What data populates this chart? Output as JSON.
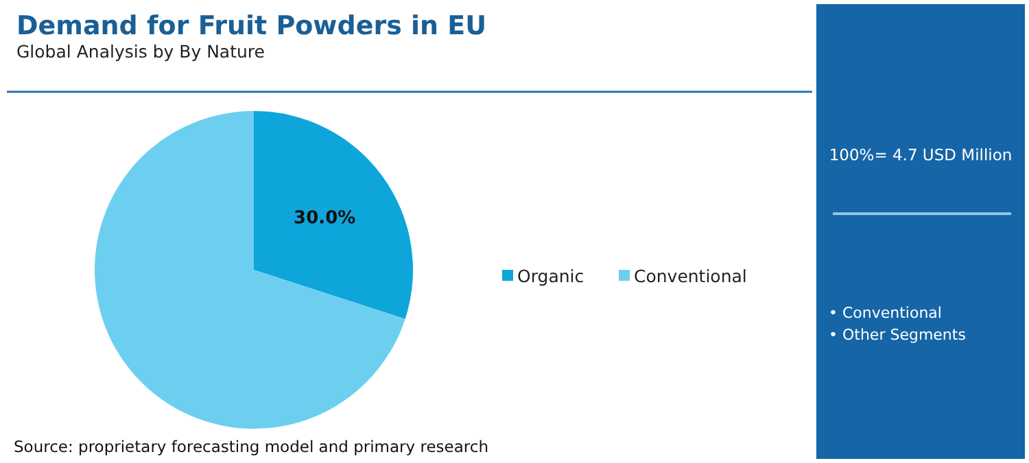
{
  "chart_data": {
    "type": "pie",
    "title": "Demand for Fruit Powders in EU",
    "subtitle": "Global Analysis by By Nature",
    "categories": [
      "Organic",
      "Conventional"
    ],
    "values": [
      30,
      70
    ],
    "colors": [
      "#0ea5db",
      "#6dcff0"
    ],
    "value_labels": [
      "30.0%",
      null
    ],
    "legend": "right",
    "annotations": [
      "100%= 4.7 USD Million",
      "• Conventional",
      "• Other Segments",
      "Source: proprietary forecasting model and primary research"
    ]
  }
}
